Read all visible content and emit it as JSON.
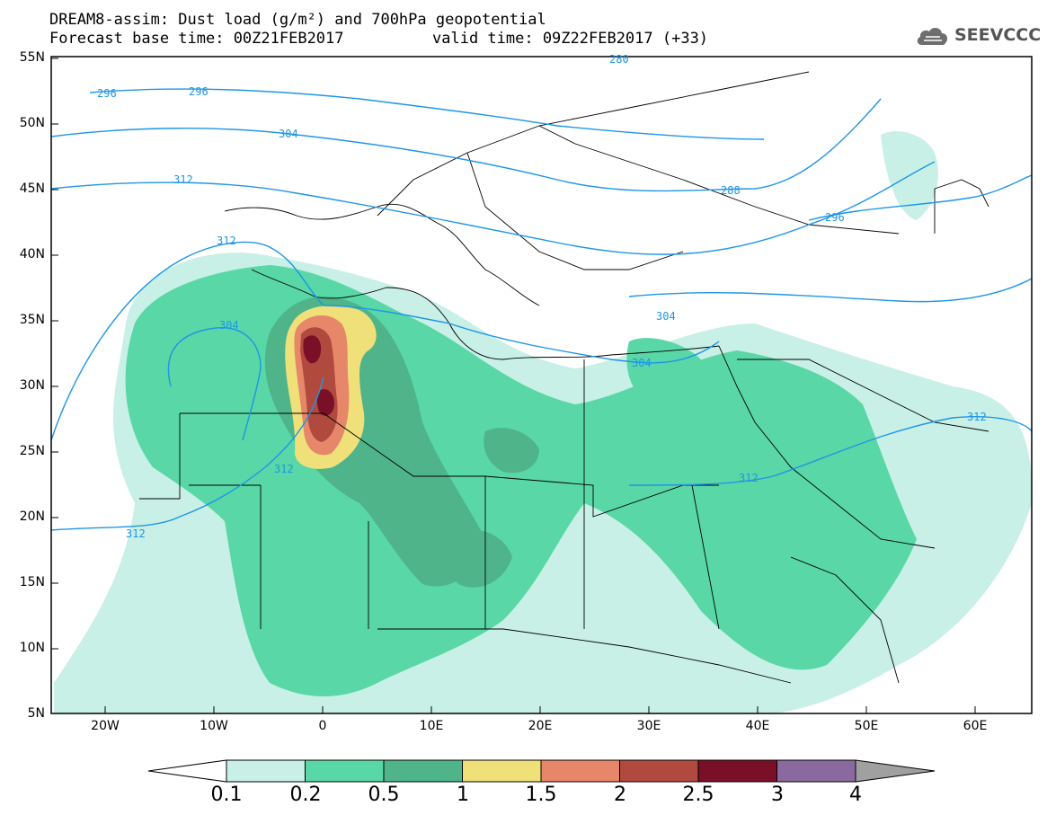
{
  "title": {
    "line1": "DREAM8-assim: Dust load (g/m²) and 700hPa geopotential",
    "line2_base": "Forecast base time: 00Z21FEB2017",
    "line2_valid": "valid time: 09Z22FEB2017 (+33)"
  },
  "logo": {
    "text": "SEEVCCC",
    "icon": "cloud-icon"
  },
  "axes": {
    "lat_labels": [
      "55N",
      "50N",
      "45N",
      "40N",
      "35N",
      "30N",
      "25N",
      "20N",
      "15N",
      "10N",
      "5N"
    ],
    "lon_labels": [
      "20W",
      "10W",
      "0",
      "10E",
      "20E",
      "30E",
      "40E",
      "50E",
      "60E"
    ]
  },
  "contours": {
    "labels": [
      "296",
      "296",
      "304",
      "312",
      "312",
      "304",
      "312",
      "312",
      "280",
      "288",
      "296",
      "304",
      "304",
      "312",
      "312"
    ]
  },
  "colorbar": {
    "labels": [
      "0.1",
      "0.2",
      "0.5",
      "1",
      "1.5",
      "2",
      "2.5",
      "3",
      "4"
    ],
    "colors": [
      "#c8f0e6",
      "#5ad7a6",
      "#4fb48a",
      "#f0e07a",
      "#e7876a",
      "#b04a3e",
      "#7a0f28",
      "#8a6a9e",
      "#a0a0a0"
    ]
  },
  "colors": {
    "contour_line": "#1e96e6",
    "land_border": "#000000"
  }
}
